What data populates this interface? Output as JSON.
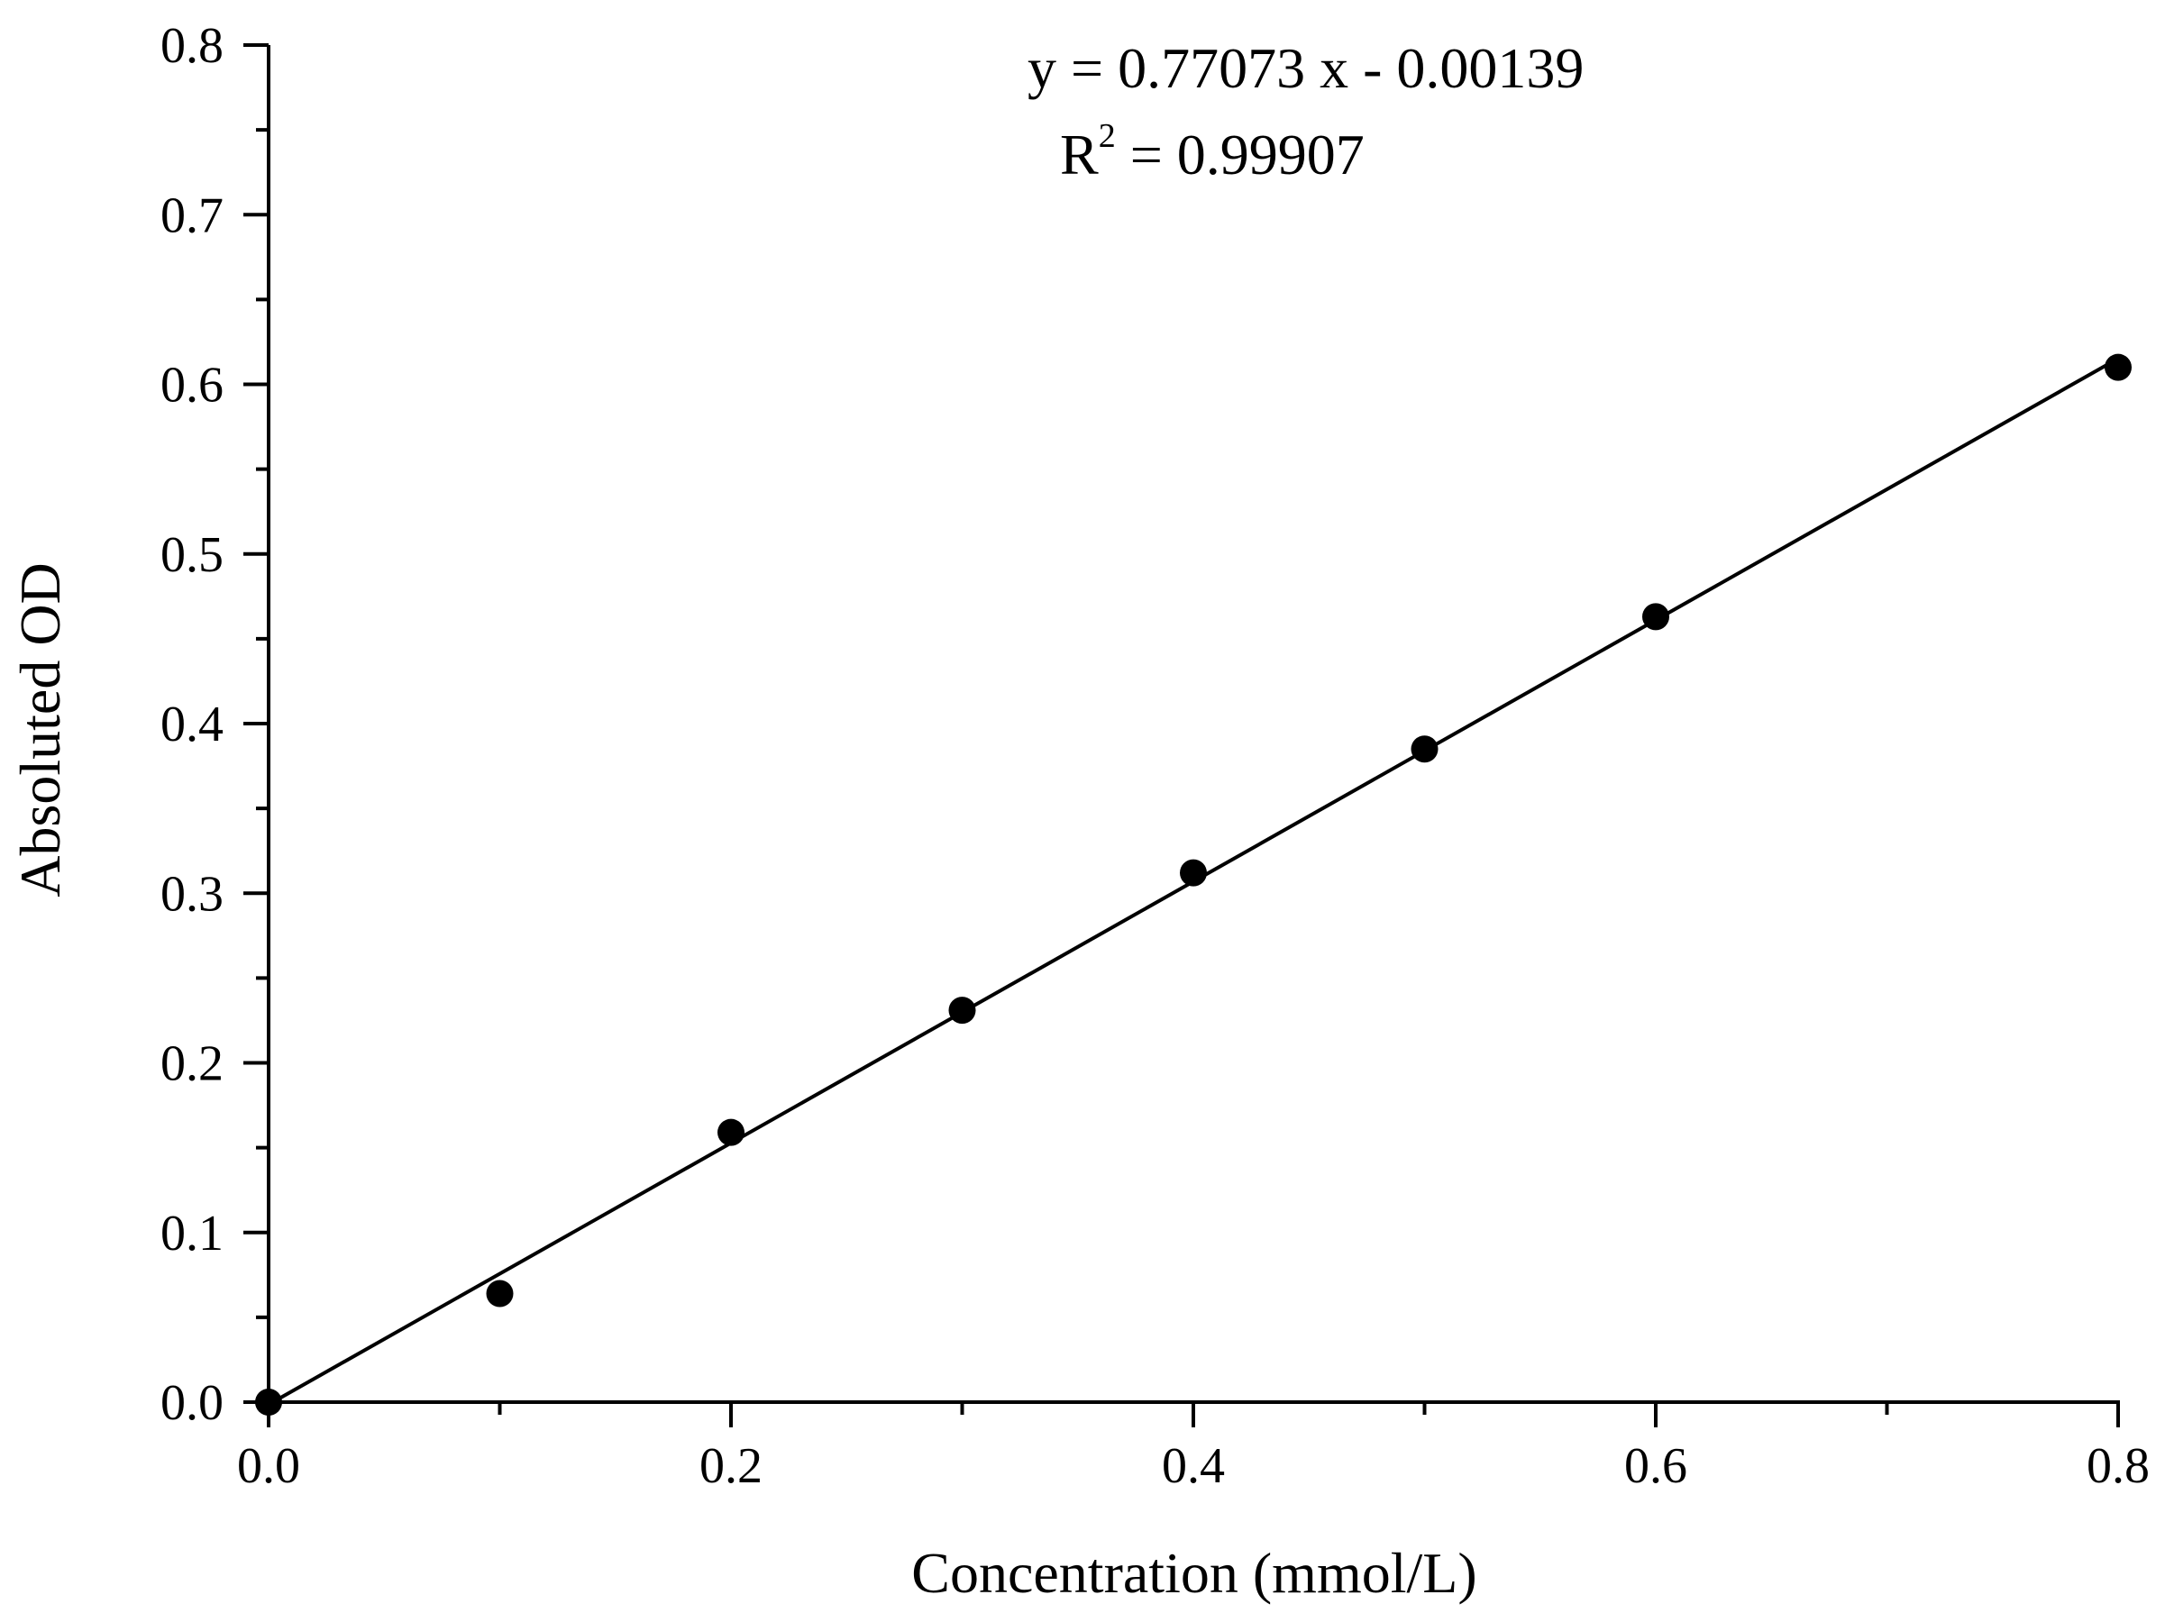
{
  "chart_data": {
    "type": "scatter",
    "xlabel": "Concentration (mmol/L)",
    "ylabel": "Absoluted OD",
    "xlim": [
      0.0,
      0.8
    ],
    "ylim": [
      0.0,
      0.8
    ],
    "x_ticks": [
      "0.0",
      "0.2",
      "0.4",
      "0.6",
      "0.8"
    ],
    "y_ticks": [
      "0.0",
      "0.1",
      "0.2",
      "0.3",
      "0.4",
      "0.5",
      "0.6",
      "0.7",
      "0.8"
    ],
    "grid": false,
    "series": [
      {
        "points": [
          {
            "x": 0.0,
            "y": 0.0
          },
          {
            "x": 0.1,
            "y": 0.064
          },
          {
            "x": 0.2,
            "y": 0.159
          },
          {
            "x": 0.3,
            "y": 0.231
          },
          {
            "x": 0.4,
            "y": 0.312
          },
          {
            "x": 0.5,
            "y": 0.385
          },
          {
            "x": 0.6,
            "y": 0.463
          },
          {
            "x": 0.8,
            "y": 0.61
          }
        ],
        "color": "#000000"
      }
    ],
    "fit": {
      "slope": 0.77073,
      "intercept": -0.00139,
      "equation_label": "y = 0.77073 x - 0.00139",
      "r2_prefix": "R",
      "r2_sup": "2",
      "r2_value": " = 0.99907"
    }
  }
}
